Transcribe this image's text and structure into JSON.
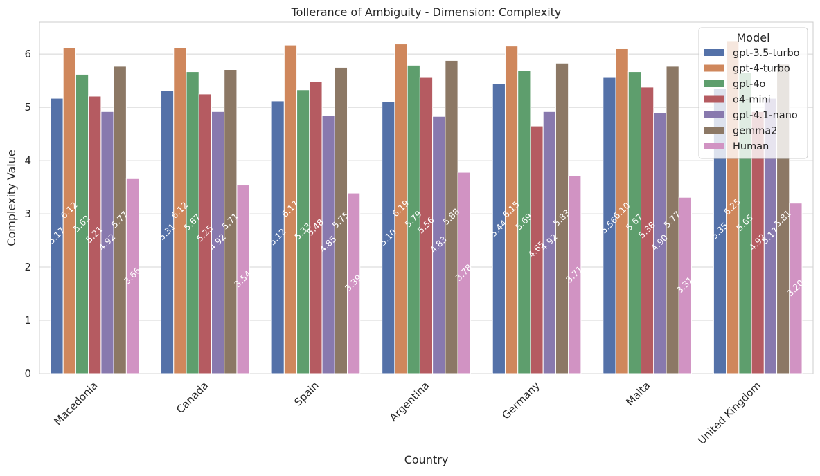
{
  "chart_data": {
    "type": "bar",
    "title": "Tollerance of Ambiguity - Dimension: Complexity",
    "xlabel": "Country",
    "ylabel": "Complexity Value",
    "ylim": [
      0,
      6.6
    ],
    "yticks": [
      0,
      1,
      2,
      3,
      4,
      5,
      6
    ],
    "grid": "horizontal",
    "legend_title": "Model",
    "legend_position": "top-right",
    "categories": [
      "Macedonia",
      "Canada",
      "Spain",
      "Argentina",
      "Germany",
      "Malta",
      "United Kingdom"
    ],
    "series": [
      {
        "name": "gpt-3.5-turbo",
        "color": "#5471a8",
        "values": [
          5.17,
          5.31,
          5.12,
          5.1,
          5.44,
          5.56,
          5.35
        ],
        "labels": [
          "5.17",
          "5.31",
          "5.12",
          "5.10",
          "5.44",
          "5.56",
          "5.35"
        ]
      },
      {
        "name": "gpt-4-turbo",
        "color": "#cf875c",
        "values": [
          6.12,
          6.12,
          6.17,
          6.19,
          6.15,
          6.1,
          6.25
        ],
        "labels": [
          "6.12",
          "6.12",
          "6.17",
          "6.19",
          "6.15",
          "6.10",
          "6.25"
        ]
      },
      {
        "name": "gpt-4o",
        "color": "#5e9e6d",
        "values": [
          5.62,
          5.67,
          5.33,
          5.79,
          5.69,
          5.67,
          5.65
        ],
        "labels": [
          "5.62",
          "5.67",
          "5.33",
          "5.79",
          "5.69",
          "5.67",
          "5.65"
        ]
      },
      {
        "name": "o4-mini",
        "color": "#b55b61",
        "values": [
          5.21,
          5.25,
          5.48,
          5.56,
          4.65,
          5.38,
          4.92
        ],
        "labels": [
          "5.21",
          "5.25",
          "5.48",
          "5.56",
          "4.65",
          "5.38",
          "4.92"
        ]
      },
      {
        "name": "gpt-4.1-nano",
        "color": "#8879ae",
        "values": [
          4.92,
          4.92,
          4.85,
          4.83,
          4.92,
          4.9,
          5.17
        ],
        "labels": [
          "4.92",
          "4.92",
          "4.85",
          "4.83",
          "4.92",
          "4.90",
          "5.17"
        ]
      },
      {
        "name": "gemma2",
        "color": "#8c7865",
        "values": [
          5.77,
          5.71,
          5.75,
          5.88,
          5.83,
          5.77,
          5.81
        ],
        "labels": [
          "5.77",
          "5.71",
          "5.75",
          "5.88",
          "5.83",
          "5.77",
          "5.81"
        ]
      },
      {
        "name": "Human",
        "color": "#d193c3",
        "values": [
          3.66,
          3.54,
          3.39,
          3.78,
          3.71,
          3.31,
          3.2
        ],
        "labels": [
          "3.66",
          "3.54",
          "3.39",
          "3.78",
          "3.71",
          "3.31",
          "3.20"
        ]
      }
    ]
  }
}
